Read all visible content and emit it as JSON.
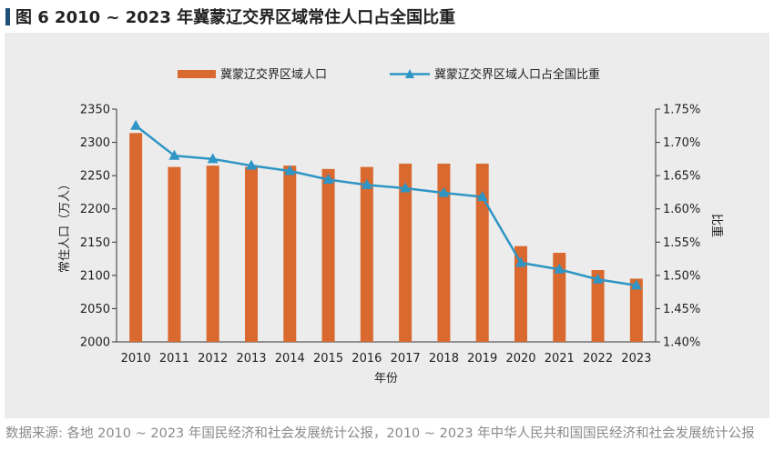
{
  "figure": {
    "title": "图 6   2010 ~ 2023 年冀蒙辽交界区域常住人口占全国比重",
    "source": "数据来源: 各地 2010 ~ 2023 年国民经济和社会发展统计公报，2010 ~ 2023 年中华人民共和国国民经济和社会发展统计公报"
  },
  "colors": {
    "bar": "#d9692e",
    "line": "#2e95c4",
    "title_marker": "#1f4e79",
    "panel_bg": "#ececec"
  },
  "chart_data": {
    "type": "bar",
    "categories": [
      "2010",
      "2011",
      "2012",
      "2013",
      "2014",
      "2015",
      "2016",
      "2017",
      "2018",
      "2019",
      "2020",
      "2021",
      "2022",
      "2023"
    ],
    "series": [
      {
        "name": "冀蒙辽交界区域人口",
        "type": "bar",
        "axis": "left",
        "values": [
          2314,
          2263,
          2265,
          2263,
          2265,
          2260,
          2263,
          2268,
          2268,
          2268,
          2144,
          2134,
          2108,
          2095
        ]
      },
      {
        "name": "冀蒙辽交界区域人口占全国比重",
        "type": "line",
        "axis": "right",
        "marker": "triangle",
        "values": [
          1.725,
          1.68,
          1.675,
          1.665,
          1.657,
          1.644,
          1.636,
          1.631,
          1.624,
          1.618,
          1.519,
          1.509,
          1.494,
          1.485
        ]
      }
    ],
    "xlabel": "年份",
    "ylabel": "常住人口（万人）",
    "y2label": "比重",
    "ylim": [
      2000,
      2350
    ],
    "yticks": [
      "2000",
      "2050",
      "2100",
      "2150",
      "2200",
      "2250",
      "2300",
      "2350"
    ],
    "y2lim": [
      1.4,
      1.75
    ],
    "y2ticks": [
      "1.40%",
      "1.45%",
      "1.50%",
      "1.55%",
      "1.60%",
      "1.65%",
      "1.70%",
      "1.75%"
    ],
    "legend_position": "top-center",
    "grid": false
  }
}
